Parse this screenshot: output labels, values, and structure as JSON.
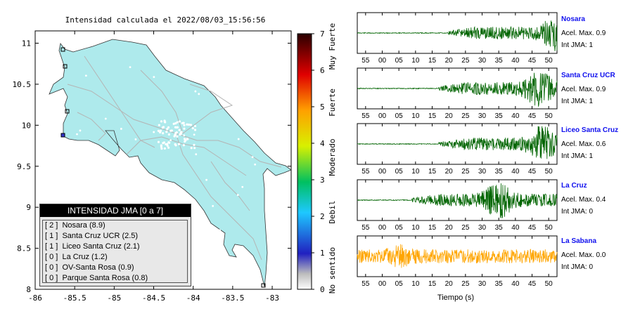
{
  "title": "Intensidad calculada el 2022/08/03_15:56:56",
  "map": {
    "x_ticks": [
      "-86",
      "-85.5",
      "-85",
      "-84.5",
      "-84",
      "-83.5",
      "-83"
    ],
    "y_ticks": [
      "8",
      "8.5",
      "9",
      "9.5",
      "10",
      "10.5",
      "11"
    ],
    "land_color": "#aeeaec",
    "water_color": "#ffffff"
  },
  "colorbar": {
    "ticks": [
      "0",
      "1",
      "2",
      "3",
      "4",
      "5",
      "6",
      "7"
    ],
    "labels": [
      "No sentido",
      "Debil",
      "Moderado",
      "Fuerte",
      "Muy Fuerte"
    ]
  },
  "legend": {
    "header": "INTENSIDAD JMA [0 a 7]",
    "items": [
      {
        "jma": "[ 2 ]",
        "name": "Nosara (8.9)"
      },
      {
        "jma": "[ 1 ]",
        "name": "Santa Cruz UCR (2.5)"
      },
      {
        "jma": "[ 1 ]",
        "name": "Liceo Santa Cruz (2.1)"
      },
      {
        "jma": "[ 0 ]",
        "name": "La Cruz (1.2)"
      },
      {
        "jma": "[ 0 ]",
        "name": "OV-Santa Rosa (0.9)"
      },
      {
        "jma": "[ 0 ]",
        "name": "Parque Santa Rosa (0.8)"
      }
    ]
  },
  "stations": [
    {
      "name": "Nosara",
      "accel": "Acel. Max. 0.9",
      "jma": "Int JMA: 1"
    },
    {
      "name": "Santa Cruz UCR",
      "accel": "Acel. Max. 0.9",
      "jma": "Int JMA: 1"
    },
    {
      "name": "Liceo Santa Cruz",
      "accel": "Acel. Max. 0.6",
      "jma": "Int JMA: 1"
    },
    {
      "name": "La Cruz",
      "accel": "Acel. Max. 0.4",
      "jma": "Int JMA: 0"
    },
    {
      "name": "La Sabana",
      "accel": "Acel. Max. 0.0",
      "jma": "Int JMA: 0"
    }
  ],
  "chart_data": {
    "type": "line",
    "xlabel": "Tiempo (s)",
    "x_tick_labels": [
      "55",
      "00",
      "05",
      "10",
      "15",
      "20",
      "25",
      "30",
      "35",
      "40",
      "45",
      "50"
    ],
    "series": [
      {
        "name": "Nosara",
        "color": "#006400",
        "onset": 20,
        "peak": 52
      },
      {
        "name": "Santa Cruz UCR",
        "color": "#006400",
        "onset": 17,
        "peak": 47
      },
      {
        "name": "Liceo Santa Cruz",
        "color": "#006400",
        "onset": 17,
        "peak": 48
      },
      {
        "name": "La Cruz",
        "color": "#006400",
        "onset": 9,
        "peak": 35
      },
      {
        "name": "La Sabana",
        "color": "#ffa500",
        "onset": -6,
        "peak": 5
      }
    ]
  }
}
